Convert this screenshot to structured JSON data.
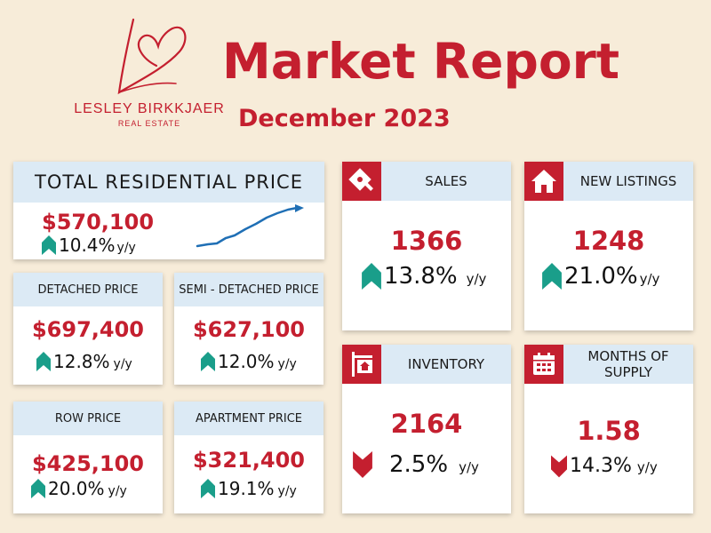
{
  "logo": {
    "brand": "LESLEY BIRKKJAER",
    "sub": "REAL ESTATE"
  },
  "title": "Market Report",
  "subtitle": "December 2023",
  "colors": {
    "brand_red": "#c41f2f",
    "teal_up": "#1a9e8a",
    "header_blue": "#dceaf5",
    "background": "#f7ecd9",
    "chart_line": "#1f6fb5"
  },
  "total": {
    "label": "TOTAL RESIDENTIAL PRICE",
    "value": "$570,100",
    "change": "10.4%",
    "yy": "y/y",
    "direction": "up"
  },
  "detached": {
    "label": "DETACHED PRICE",
    "value": "$697,400",
    "change": "12.8%",
    "yy": "y/y",
    "direction": "up"
  },
  "semi": {
    "label": "SEMI - DETACHED PRICE",
    "value": "$627,100",
    "change": "12.0%",
    "yy": "y/y",
    "direction": "up"
  },
  "row": {
    "label": "ROW PRICE",
    "value": "$425,100",
    "change": "20.0%",
    "yy": "y/y",
    "direction": "up"
  },
  "apartment": {
    "label": "APARTMENT PRICE",
    "value": "$321,400",
    "change": "19.1%",
    "yy": "y/y",
    "direction": "up"
  },
  "sales": {
    "label": "SALES",
    "value": "1366",
    "change": "13.8%",
    "yy": "y/y",
    "direction": "up",
    "icon": "sold-sign-icon"
  },
  "new_listings": {
    "label": "NEW LISTINGS",
    "value": "1248",
    "change": "21.0%",
    "yy": "y/y",
    "direction": "up",
    "icon": "house-icon"
  },
  "inventory": {
    "label": "INVENTORY",
    "value": "2164",
    "change": "2.5%",
    "yy": "y/y",
    "direction": "down",
    "icon": "house-sign-icon"
  },
  "months_supply": {
    "label": "MONTHS OF SUPPLY",
    "value": "1.58",
    "change": "14.3%",
    "yy": "y/y",
    "direction": "down",
    "icon": "calendar-icon"
  }
}
